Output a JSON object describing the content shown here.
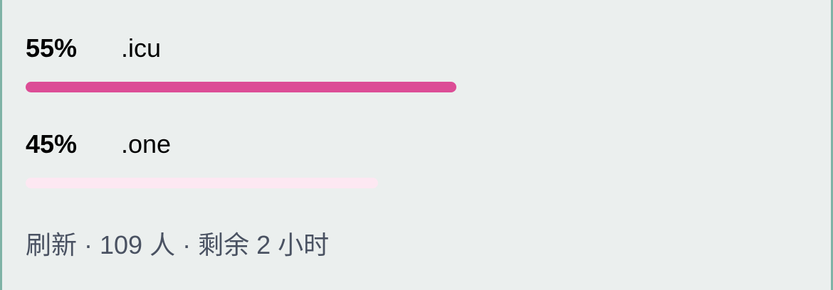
{
  "poll": {
    "options": [
      {
        "percent_label": "55%",
        "label": ".icu",
        "fraction": 0.55,
        "bar_color": "#dc4d96"
      },
      {
        "percent_label": "45%",
        "label": ".one",
        "fraction": 0.45,
        "bar_color": "#fde8f2"
      }
    ],
    "footer": {
      "refresh_label": "刷新",
      "separator": "·",
      "voters": "109 人",
      "time_left": "剩余 2 小时"
    }
  }
}
